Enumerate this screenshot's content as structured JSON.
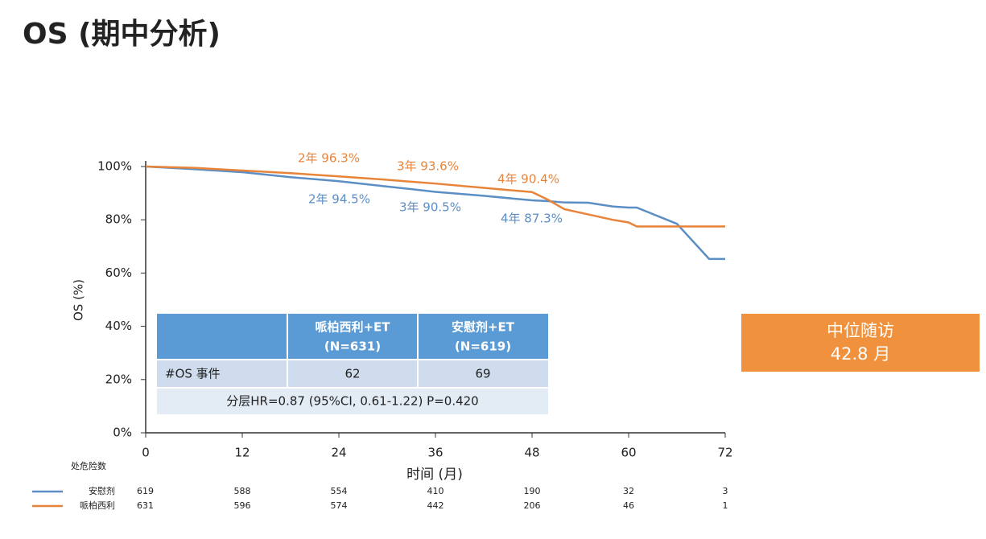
{
  "chart_data": {
    "type": "line",
    "title": "OS (期中分析)",
    "x_label": "时间 (月)",
    "y_label": "OS (%)",
    "xlim": [
      0,
      72
    ],
    "xticks": [
      0,
      12,
      24,
      36,
      48,
      60,
      72
    ],
    "ylim": [
      0,
      100
    ],
    "yticks": [
      {
        "value": 0,
        "label": "0%"
      },
      {
        "value": 20,
        "label": "20%"
      },
      {
        "value": 40,
        "label": "40%"
      },
      {
        "value": 60,
        "label": "60%"
      },
      {
        "value": 80,
        "label": "80%"
      },
      {
        "value": 100,
        "label": "100%"
      }
    ],
    "x": [
      0,
      6,
      12,
      18,
      24,
      30,
      36,
      42,
      48,
      50,
      52,
      55,
      58,
      60,
      61,
      66,
      70,
      72
    ],
    "series": [
      {
        "name": "安慰剂",
        "color": "#5b8ec4",
        "values": [
          100,
          99,
          97.9,
          96,
          94.5,
          92.5,
          90.5,
          89,
          87.3,
          87,
          86.5,
          86.4,
          85,
          84.6,
          84.6,
          78.5,
          65.3,
          65.3
        ],
        "milestones": [
          "2年 94.5%",
          "3年 90.5%",
          "4年 87.3%"
        ],
        "at_risk": [
          619,
          588,
          554,
          410,
          190,
          32,
          3
        ]
      },
      {
        "name": "哌柏西利",
        "color": "#e8843a",
        "values": [
          100,
          99.5,
          98.5,
          97.5,
          96.3,
          95,
          93.6,
          92,
          90.4,
          87.5,
          84,
          82,
          80,
          79,
          77.5,
          77.5,
          77.5,
          77.5
        ],
        "milestones": [
          "2年 96.3%",
          "3年 93.6%",
          "4年 90.4%"
        ],
        "at_risk": [
          631,
          596,
          574,
          442,
          206,
          46,
          1
        ]
      }
    ],
    "risk_title": "处危险数"
  },
  "table": {
    "header": [
      [
        "哌柏西利+ET",
        "(N=631)"
      ],
      [
        "安慰剂+ET",
        "(N=619)"
      ]
    ],
    "rows": [
      [
        "#OS 事件",
        62,
        69
      ]
    ],
    "footnote": "分层HR=0.87 (95%CI, 0.61-1.22) P=0.420"
  },
  "callout": {
    "line1": "中位随访",
    "line2": "42.8 月"
  }
}
